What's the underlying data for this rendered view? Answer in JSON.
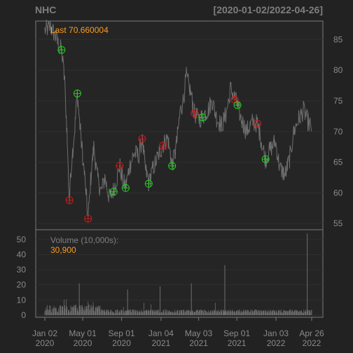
{
  "header": {
    "symbol": "NHC",
    "date_range": "[2020-01-02/2022-04-26]"
  },
  "colors": {
    "background": "#222222",
    "grid": "#2f2f2f",
    "border": "#7a7a7a",
    "text": "#8a8a8a",
    "accent": "#ff9a1e",
    "price_line": "#6e6e6e",
    "buy_marker": "#22cc22",
    "sell_marker": "#cc1a1a"
  },
  "chart_data": [
    {
      "type": "line",
      "panel": "price",
      "label": "Last",
      "last_value": "70.660004",
      "ylim": [
        54,
        88
      ],
      "y_ticks": [
        55,
        60,
        65,
        70,
        75,
        80,
        85
      ],
      "x_range": [
        "2020-01-02",
        "2022-04-26"
      ],
      "grid": true,
      "series": [
        {
          "values_by_date": [
            [
              "2020-01-02",
              86.5
            ],
            [
              "2020-01-20",
              87.0
            ],
            [
              "2020-02-05",
              85.5
            ],
            [
              "2020-02-15",
              84.0
            ],
            [
              "2020-02-24",
              83.2
            ],
            [
              "2020-03-05",
              78.0
            ],
            [
              "2020-03-12",
              70.0
            ],
            [
              "2020-03-17",
              62.0
            ],
            [
              "2020-03-20",
              58.5
            ],
            [
              "2020-03-25",
              64.0
            ],
            [
              "2020-04-05",
              70.0
            ],
            [
              "2020-04-14",
              76.2
            ],
            [
              "2020-04-22",
              71.0
            ],
            [
              "2020-05-01",
              66.0
            ],
            [
              "2020-05-10",
              61.0
            ],
            [
              "2020-05-18",
              55.8
            ],
            [
              "2020-05-26",
              62.0
            ],
            [
              "2020-06-05",
              67.5
            ],
            [
              "2020-06-15",
              63.0
            ],
            [
              "2020-06-28",
              60.0
            ],
            [
              "2020-07-10",
              62.5
            ],
            [
              "2020-07-25",
              59.0
            ],
            [
              "2020-08-07",
              60.5
            ],
            [
              "2020-08-20",
              63.0
            ],
            [
              "2020-08-26",
              64.5
            ],
            [
              "2020-09-05",
              62.0
            ],
            [
              "2020-09-14",
              61.0
            ],
            [
              "2020-09-25",
              64.0
            ],
            [
              "2020-10-10",
              66.5
            ],
            [
              "2020-10-25",
              66.0
            ],
            [
              "2020-11-05",
              68.8
            ],
            [
              "2020-11-15",
              64.0
            ],
            [
              "2020-11-26",
              61.6
            ],
            [
              "2020-12-10",
              64.0
            ],
            [
              "2020-12-25",
              66.0
            ],
            [
              "2021-01-10",
              67.8
            ],
            [
              "2021-01-25",
              69.0
            ],
            [
              "2021-02-08",
              64.5
            ],
            [
              "2021-02-20",
              67.0
            ],
            [
              "2021-03-05",
              73.0
            ],
            [
              "2021-03-15",
              75.0
            ],
            [
              "2021-03-25",
              79.0
            ],
            [
              "2021-04-05",
              77.0
            ],
            [
              "2021-04-20",
              73.0
            ],
            [
              "2021-05-02",
              72.0
            ],
            [
              "2021-05-15",
              72.4
            ],
            [
              "2021-06-01",
              73.5
            ],
            [
              "2021-06-15",
              75.0
            ],
            [
              "2021-06-30",
              72.0
            ],
            [
              "2021-07-15",
              71.0
            ],
            [
              "2021-07-30",
              73.0
            ],
            [
              "2021-08-12",
              77.0
            ],
            [
              "2021-08-25",
              75.5
            ],
            [
              "2021-09-03",
              74.3
            ],
            [
              "2021-09-15",
              72.0
            ],
            [
              "2021-10-01",
              70.0
            ],
            [
              "2021-10-20",
              71.5
            ],
            [
              "2021-11-05",
              71.3
            ],
            [
              "2021-11-20",
              68.0
            ],
            [
              "2021-12-01",
              65.5
            ],
            [
              "2021-12-15",
              67.0
            ],
            [
              "2022-01-01",
              68.5
            ],
            [
              "2022-01-15",
              64.0
            ],
            [
              "2022-02-01",
              63.0
            ],
            [
              "2022-02-15",
              65.5
            ],
            [
              "2022-03-01",
              70.0
            ],
            [
              "2022-03-15",
              72.0
            ],
            [
              "2022-04-01",
              73.5
            ],
            [
              "2022-04-15",
              71.5
            ],
            [
              "2022-04-26",
              70.66
            ]
          ]
        }
      ],
      "markers": [
        {
          "date": "2020-02-24",
          "value": 83.3,
          "signal": "buy"
        },
        {
          "date": "2020-04-14",
          "value": 76.2,
          "signal": "buy"
        },
        {
          "date": "2020-03-20",
          "value": 58.8,
          "signal": "sell"
        },
        {
          "date": "2020-05-18",
          "value": 55.8,
          "signal": "sell"
        },
        {
          "date": "2020-08-07",
          "value": 60.2,
          "signal": "buy"
        },
        {
          "date": "2020-08-26",
          "value": 64.4,
          "signal": "sell"
        },
        {
          "date": "2020-09-14",
          "value": 60.8,
          "signal": "buy"
        },
        {
          "date": "2020-11-05",
          "value": 68.8,
          "signal": "sell"
        },
        {
          "date": "2020-11-26",
          "value": 61.5,
          "signal": "buy"
        },
        {
          "date": "2021-01-10",
          "value": 67.7,
          "signal": "sell"
        },
        {
          "date": "2021-02-08",
          "value": 64.4,
          "signal": "buy"
        },
        {
          "date": "2021-04-20",
          "value": 73.0,
          "signal": "sell"
        },
        {
          "date": "2021-05-15",
          "value": 72.3,
          "signal": "buy"
        },
        {
          "date": "2021-08-25",
          "value": 75.2,
          "signal": "sell"
        },
        {
          "date": "2021-09-03",
          "value": 74.3,
          "signal": "buy"
        },
        {
          "date": "2021-11-05",
          "value": 71.3,
          "signal": "sell"
        },
        {
          "date": "2021-12-01",
          "value": 65.5,
          "signal": "buy"
        }
      ]
    },
    {
      "type": "bar",
      "panel": "volume",
      "label": "Volume (10,000s):",
      "last_value": "30,900",
      "ylim": [
        0,
        55
      ],
      "y_ticks": [
        0,
        10,
        20,
        30,
        40,
        50
      ],
      "spikes": [
        {
          "date": "2020-04-20",
          "value": 21
        },
        {
          "date": "2020-09-20",
          "value": 17
        },
        {
          "date": "2021-01-01",
          "value": 19
        },
        {
          "date": "2021-04-10",
          "value": 21
        },
        {
          "date": "2021-07-25",
          "value": 33
        },
        {
          "date": "2022-04-12",
          "value": 54
        }
      ]
    }
  ],
  "x_axis": {
    "ticks": [
      {
        "date": "2020-01-02",
        "line1": "Jan 02",
        "line2": "2020"
      },
      {
        "date": "2020-05-01",
        "line1": "May 01",
        "line2": "2020"
      },
      {
        "date": "2020-09-01",
        "line1": "Sep 01",
        "line2": "2020"
      },
      {
        "date": "2021-01-04",
        "line1": "Jan 04",
        "line2": "2021"
      },
      {
        "date": "2021-05-03",
        "line1": "May 03",
        "line2": "2021"
      },
      {
        "date": "2021-09-01",
        "line1": "Sep 01",
        "line2": "2021"
      },
      {
        "date": "2022-01-03",
        "line1": "Jan 03",
        "line2": "2022"
      },
      {
        "date": "2022-04-26",
        "line1": "Apr 26",
        "line2": "2022"
      }
    ]
  }
}
